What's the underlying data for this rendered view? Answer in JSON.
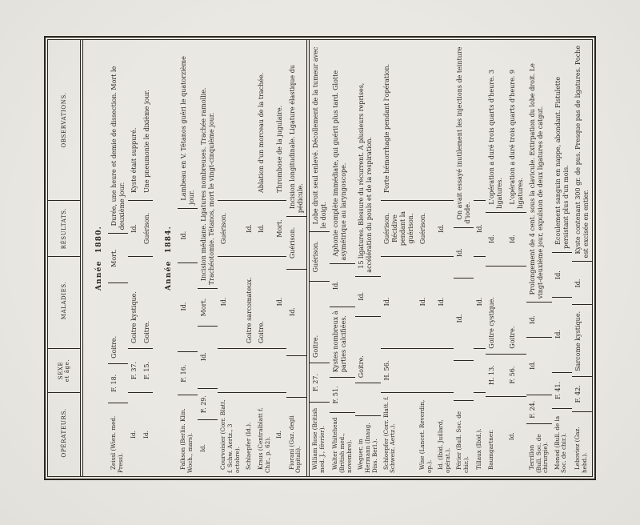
{
  "page": {
    "colors": {
      "ink": "#29261f",
      "paper": "#eae8e2"
    },
    "columns": [
      {
        "label": "OPÉRATEURS."
      },
      {
        "label": "SEXE et âge."
      },
      {
        "label": "MALADIES."
      },
      {
        "label": "RÉSULTATS."
      },
      {
        "label": "OBSERVATIONS."
      }
    ],
    "blocks": [
      {
        "year": "Année 1880.",
        "separated": false,
        "rows": [
          [
            "Zeissl (Wien. med. Press).",
            "F. 18.",
            "Goitre.",
            "Mort.",
            "Durée, une heure et demie de dissection. Mort le deuxième jour."
          ],
          [
            "Id.",
            "F. 37.",
            "Goitre kystique.",
            "Id.",
            "Kyste était suppuré."
          ],
          [
            "Id.",
            "F. 15.",
            "Goitre.",
            "Guérison.",
            "Une pneumonie le dixième jour."
          ]
        ]
      },
      {
        "year": "Année 1884.",
        "separated": false,
        "rows": [
          [
            "Falkson (Berlin. Klin. Woch., mars).",
            "F. 16.",
            "Id.",
            "Id.",
            "Lambeau en V. Tétanos guéri le quatorzième jour."
          ],
          [
            "Id.",
            "F. 29.",
            "Id.",
            "Mort.",
            "Incision médiane. Ligatures nombreuses. Trachée ramollie. Trachéotomie. Tétanos, mort le vingt-cinquième jour."
          ],
          [
            "Courvoisier (Corr. Blatt. f. Schw. Aertz., 3 octobre).",
            "",
            "Id.",
            "Guérison.",
            ""
          ],
          [
            "Schlaepfer (Id.).",
            "",
            "Goitre sarcomateux.",
            "Id.",
            ""
          ],
          [
            "Kraus (Centralblatt f. Chir., p. 62).",
            "",
            "Goitre.",
            "Id.",
            "Ablation d'un morceau de la trachée."
          ],
          [
            "Id.",
            "",
            "Id.",
            "Mort.",
            "Thrombose de la jugulaire."
          ],
          [
            "Fiorani (Gaz. degli Ospitali).",
            "",
            "Id.",
            "Guérison.",
            "Incision longitudinale. Ligature élastique du pédicule."
          ]
        ]
      },
      {
        "year": null,
        "separated": true,
        "rows": [
          [
            "William Rose (British med. J., février).",
            "F. 27.",
            "Goitre.",
            "Guérison.",
            "Lobe droit seul enlevé. Décollement de la tumeur avec le doigt."
          ],
          [
            "Walter Whitehead (British med., novembre).",
            "F. 51.",
            "Kystes nombreux à parties calcifiées.",
            "Id.",
            "Aphonie complète immédiate, qui guérit plus tard. Glotte asymétrique au laryngoscope."
          ],
          [
            "Weguer, in Hermann (Inaug. Diss. Berl.).",
            "",
            "Goitre.",
            "Id.",
            "15 ligatures. Blessure du récurrent. A plusieurs reprises, accélération du pouls et de la respiration."
          ],
          [
            "Schloepfer (Corr. Blatt. f. Schweiz. Aertz.).",
            "H. 56.",
            "Id.",
            "Guérison. Récidive pendant la guérison.",
            "Forte hémorrhagie pendant l'opération."
          ],
          [
            "Wise (Lancet. Reverdin, op.).",
            "",
            "Id.",
            "Guérison.",
            ""
          ],
          [
            "Id. (Ibid. Juillard, opérat.).",
            "",
            "Id.",
            "Id.",
            ""
          ],
          [
            "Périer (Bull. Soc. de chir.).",
            "",
            "Id.",
            "Id.",
            "On avait essayé inutilement les injections de teinture d'iode."
          ],
          [
            "Tillaux (Ibid.).",
            "",
            "Id.",
            "Id.",
            ""
          ],
          [
            "Baumgartner.",
            "H. 13.",
            "Goitre cystique.",
            "Id.",
            "L'opération a duré trois quarts d'heure. 3 ligatures."
          ],
          [
            "Id.",
            "F. 56.",
            "Goitre.",
            "Id.",
            "L'opération a duré trois quarts d'heure. 9 ligatures."
          ],
          [
            "Terrillon (Bull. Soc. de chirurgie).",
            "F. 24.",
            "Id.",
            "Id.",
            "Prolongement de 4 cent. sous la clavicule. Extirpation du lobe droit. Le vingt-deuxième jour, expulsion de deux ligatures de catgut."
          ],
          [
            "Monod (Bull. de la Soc. de chir.).",
            "F. 41.",
            "Id.",
            "Id.",
            "Écoulement sanguin en nappe, abondant. Fistulette persistant plus d'un mois."
          ],
          [
            "Leboviez (Gaz. hebd.).",
            "F. 42.",
            "Sarcome kystique.",
            "Id.",
            "Kyste contenant 300 gr. de pus. Presque pas de ligatures. Poche est excisée en entier."
          ]
        ]
      }
    ]
  }
}
